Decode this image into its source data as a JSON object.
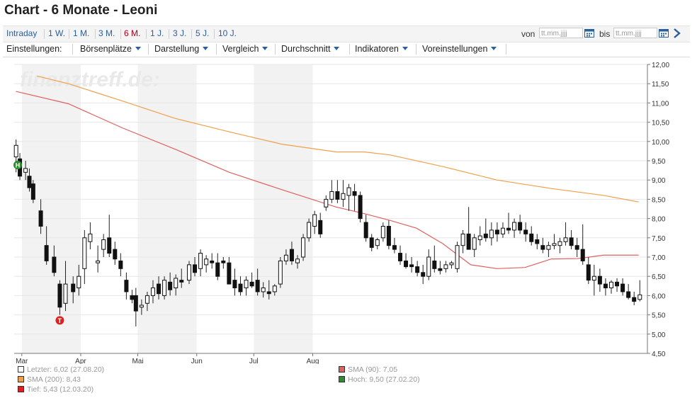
{
  "page": {
    "title": "Chart - 6 Monate - Leoni"
  },
  "range_tabs": [
    {
      "label": "Intraday",
      "active": false
    },
    {
      "label": "1 W.",
      "active": false
    },
    {
      "label": "1 M.",
      "active": false
    },
    {
      "label": "3 M.",
      "active": false
    },
    {
      "label": "6 M.",
      "active": true
    },
    {
      "label": "1 J.",
      "active": false
    },
    {
      "label": "3 J.",
      "active": false
    },
    {
      "label": "5 J.",
      "active": false
    },
    {
      "label": "10 J.",
      "active": false
    }
  ],
  "date_filter": {
    "from_label": "von",
    "from_placeholder": "tt.mm.jjjj",
    "to_label": "bis",
    "to_placeholder": "tt.mm.jjjj"
  },
  "settings": {
    "label": "Einstellungen:",
    "menus": [
      "Börsenplätze",
      "Darstellung",
      "Vergleich",
      "Durchschnitt",
      "Indikatoren",
      "Voreinstellungen"
    ]
  },
  "colors": {
    "sma90": "#e06060",
    "sma200": "#f0a04a",
    "high_marker": "#2e8b2e",
    "low_marker": "#e02020",
    "band": "#f2f2f2",
    "grid": "#e6e6e6",
    "link": "#2a5f9e",
    "active_tab": "#b0001e"
  },
  "chart_data": {
    "type": "candlestick",
    "watermark": "finanztreff.de:",
    "x_axis": {
      "ticks": [
        "Mar",
        "Apr",
        "Mai",
        "Jun",
        "Jul",
        "Aug"
      ]
    },
    "y_axis": {
      "ylim": [
        4.5,
        12.0
      ],
      "ticks": [
        "12,00",
        "11,50",
        "11,00",
        "10,50",
        "10,00",
        "9,50",
        "9,00",
        "8,50",
        "8,00",
        "7,50",
        "7,00",
        "6,50",
        "6,00",
        "5,50",
        "5,00",
        "4,50"
      ],
      "position": "right"
    },
    "sma_200": [
      {
        "day": 13,
        "v": 11.7
      },
      {
        "day": 31,
        "v": 11.5
      },
      {
        "day": 62,
        "v": 11.05
      },
      {
        "day": 92,
        "v": 10.6
      },
      {
        "day": 123,
        "v": 10.25
      },
      {
        "day": 153,
        "v": 9.93
      },
      {
        "day": 184,
        "v": 9.73
      },
      {
        "day": 200,
        "v": 9.73
      },
      {
        "day": 215,
        "v": 9.65
      },
      {
        "day": 245,
        "v": 9.35
      },
      {
        "day": 276,
        "v": 9.0
      },
      {
        "day": 307,
        "v": 8.78
      },
      {
        "day": 337,
        "v": 8.6
      },
      {
        "day": 357,
        "v": 8.43
      }
    ],
    "sma_90": [
      {
        "day": 1,
        "v": 11.3
      },
      {
        "day": 31,
        "v": 10.98
      },
      {
        "day": 62,
        "v": 10.35
      },
      {
        "day": 92,
        "v": 9.8
      },
      {
        "day": 123,
        "v": 9.2
      },
      {
        "day": 153,
        "v": 8.75
      },
      {
        "day": 184,
        "v": 8.3
      },
      {
        "day": 200,
        "v": 8.13
      },
      {
        "day": 215,
        "v": 7.95
      },
      {
        "day": 230,
        "v": 7.75
      },
      {
        "day": 245,
        "v": 7.35
      },
      {
        "day": 261,
        "v": 6.8
      },
      {
        "day": 276,
        "v": 6.7
      },
      {
        "day": 292,
        "v": 6.73
      },
      {
        "day": 307,
        "v": 6.95
      },
      {
        "day": 322,
        "v": 6.96
      },
      {
        "day": 337,
        "v": 7.05
      },
      {
        "day": 357,
        "v": 7.05
      }
    ],
    "candles": [
      {
        "day": 1,
        "o": 9.6,
        "h": 10.05,
        "l": 9.2,
        "c": 9.9
      },
      {
        "day": 3,
        "o": 9.55,
        "h": 9.7,
        "l": 9.0,
        "c": 9.1
      },
      {
        "day": 6,
        "o": 9.2,
        "h": 9.5,
        "l": 9.0,
        "c": 9.3
      },
      {
        "day": 8,
        "o": 9.1,
        "h": 9.3,
        "l": 8.7,
        "c": 8.8
      },
      {
        "day": 10,
        "o": 8.9,
        "h": 9.0,
        "l": 8.4,
        "c": 8.5
      },
      {
        "day": 14,
        "o": 8.2,
        "h": 8.5,
        "l": 7.6,
        "c": 7.8
      },
      {
        "day": 17,
        "o": 7.3,
        "h": 7.8,
        "l": 6.8,
        "c": 6.9
      },
      {
        "day": 21,
        "o": 7.0,
        "h": 7.3,
        "l": 6.5,
        "c": 6.6
      },
      {
        "day": 24,
        "o": 6.3,
        "h": 6.4,
        "l": 5.5,
        "c": 5.7
      },
      {
        "day": 27,
        "o": 5.8,
        "h": 6.9,
        "l": 5.6,
        "c": 6.3
      },
      {
        "day": 31,
        "o": 6.3,
        "h": 6.5,
        "l": 5.8,
        "c": 6.1
      },
      {
        "day": 34,
        "o": 6.2,
        "h": 6.8,
        "l": 6.0,
        "c": 6.5
      },
      {
        "day": 37,
        "o": 6.7,
        "h": 7.7,
        "l": 6.3,
        "c": 7.5
      },
      {
        "day": 40,
        "o": 7.4,
        "h": 7.9,
        "l": 7.2,
        "c": 7.6
      },
      {
        "day": 44,
        "o": 6.85,
        "h": 7.3,
        "l": 6.6,
        "c": 6.9
      },
      {
        "day": 47,
        "o": 7.2,
        "h": 7.6,
        "l": 7.0,
        "c": 7.45
      },
      {
        "day": 50,
        "o": 7.5,
        "h": 8.1,
        "l": 7.0,
        "c": 7.1
      },
      {
        "day": 53,
        "o": 7.2,
        "h": 7.4,
        "l": 6.8,
        "c": 6.95
      },
      {
        "day": 56,
        "o": 6.9,
        "h": 7.1,
        "l": 6.5,
        "c": 6.7
      },
      {
        "day": 59,
        "o": 6.4,
        "h": 6.6,
        "l": 5.9,
        "c": 6.1
      },
      {
        "day": 62,
        "o": 6.0,
        "h": 6.15,
        "l": 5.8,
        "c": 5.9
      },
      {
        "day": 64,
        "o": 6.0,
        "h": 6.2,
        "l": 5.2,
        "c": 5.6
      },
      {
        "day": 67,
        "o": 5.7,
        "h": 5.9,
        "l": 5.5,
        "c": 5.75
      },
      {
        "day": 70,
        "o": 5.8,
        "h": 6.1,
        "l": 5.6,
        "c": 6.0
      },
      {
        "day": 73,
        "o": 6.0,
        "h": 6.4,
        "l": 5.8,
        "c": 6.2
      },
      {
        "day": 76,
        "o": 6.3,
        "h": 6.5,
        "l": 5.9,
        "c": 6.05
      },
      {
        "day": 79,
        "o": 6.0,
        "h": 6.5,
        "l": 5.9,
        "c": 6.4
      },
      {
        "day": 82,
        "o": 6.35,
        "h": 6.6,
        "l": 6.0,
        "c": 6.15
      },
      {
        "day": 85,
        "o": 6.2,
        "h": 6.55,
        "l": 6.0,
        "c": 6.45
      },
      {
        "day": 88,
        "o": 6.4,
        "h": 6.7,
        "l": 6.2,
        "c": 6.35
      },
      {
        "day": 92,
        "o": 6.4,
        "h": 6.9,
        "l": 6.3,
        "c": 6.8
      },
      {
        "day": 95,
        "o": 6.8,
        "h": 7.0,
        "l": 6.5,
        "c": 6.6
      },
      {
        "day": 98,
        "o": 6.7,
        "h": 7.2,
        "l": 6.5,
        "c": 7.1
      },
      {
        "day": 101,
        "o": 6.8,
        "h": 7.05,
        "l": 6.6,
        "c": 6.95
      },
      {
        "day": 104,
        "o": 6.9,
        "h": 7.1,
        "l": 6.7,
        "c": 6.85
      },
      {
        "day": 107,
        "o": 6.85,
        "h": 7.1,
        "l": 6.4,
        "c": 6.5
      },
      {
        "day": 110,
        "o": 6.9,
        "h": 7.0,
        "l": 6.7,
        "c": 6.85
      },
      {
        "day": 113,
        "o": 6.85,
        "h": 7.0,
        "l": 6.3,
        "c": 6.3
      },
      {
        "day": 116,
        "o": 6.4,
        "h": 6.7,
        "l": 6.0,
        "c": 6.2
      },
      {
        "day": 119,
        "o": 6.3,
        "h": 6.5,
        "l": 6.0,
        "c": 6.1
      },
      {
        "day": 122,
        "o": 6.2,
        "h": 6.5,
        "l": 6.0,
        "c": 6.4
      },
      {
        "day": 125,
        "o": 6.35,
        "h": 6.6,
        "l": 6.2,
        "c": 6.25
      },
      {
        "day": 128,
        "o": 6.4,
        "h": 6.7,
        "l": 6.0,
        "c": 6.1
      },
      {
        "day": 131,
        "o": 6.1,
        "h": 6.35,
        "l": 5.95,
        "c": 6.2
      },
      {
        "day": 134,
        "o": 6.1,
        "h": 6.4,
        "l": 5.9,
        "c": 6.05
      },
      {
        "day": 137,
        "o": 6.1,
        "h": 6.3,
        "l": 6.0,
        "c": 6.25
      },
      {
        "day": 140,
        "o": 6.3,
        "h": 7.0,
        "l": 6.2,
        "c": 6.9
      },
      {
        "day": 143,
        "o": 6.9,
        "h": 7.2,
        "l": 6.8,
        "c": 7.05
      },
      {
        "day": 146,
        "o": 7.2,
        "h": 7.4,
        "l": 6.8,
        "c": 6.9
      },
      {
        "day": 149,
        "o": 6.85,
        "h": 7.05,
        "l": 6.7,
        "c": 6.95
      },
      {
        "day": 152,
        "o": 7.0,
        "h": 7.6,
        "l": 6.9,
        "c": 7.5
      },
      {
        "day": 155,
        "o": 7.5,
        "h": 8.0,
        "l": 7.4,
        "c": 7.9
      },
      {
        "day": 158,
        "o": 7.8,
        "h": 8.2,
        "l": 7.6,
        "c": 8.1
      },
      {
        "day": 161,
        "o": 7.95,
        "h": 8.15,
        "l": 7.5,
        "c": 7.6
      },
      {
        "day": 164,
        "o": 8.3,
        "h": 8.6,
        "l": 8.2,
        "c": 8.5
      },
      {
        "day": 167,
        "o": 8.5,
        "h": 9.0,
        "l": 8.4,
        "c": 8.7
      },
      {
        "day": 170,
        "o": 8.7,
        "h": 9.0,
        "l": 8.4,
        "c": 8.5
      },
      {
        "day": 173,
        "o": 8.5,
        "h": 9.0,
        "l": 8.3,
        "c": 8.65
      },
      {
        "day": 176,
        "o": 8.6,
        "h": 8.9,
        "l": 8.2,
        "c": 8.8
      },
      {
        "day": 179,
        "o": 8.7,
        "h": 8.9,
        "l": 8.2,
        "c": 8.6
      },
      {
        "day": 182,
        "o": 8.6,
        "h": 8.7,
        "l": 7.9,
        "c": 8.0
      },
      {
        "day": 185,
        "o": 7.9,
        "h": 8.1,
        "l": 7.4,
        "c": 7.5
      },
      {
        "day": 188,
        "o": 7.5,
        "h": 7.6,
        "l": 7.15,
        "c": 7.25
      },
      {
        "day": 191,
        "o": 7.3,
        "h": 7.5,
        "l": 7.2,
        "c": 7.45
      },
      {
        "day": 194,
        "o": 7.5,
        "h": 7.9,
        "l": 7.4,
        "c": 7.8
      },
      {
        "day": 197,
        "o": 7.8,
        "h": 7.95,
        "l": 7.2,
        "c": 7.3
      },
      {
        "day": 200,
        "o": 7.3,
        "h": 7.5,
        "l": 7.1,
        "c": 7.2
      },
      {
        "day": 203,
        "o": 7.1,
        "h": 7.3,
        "l": 6.8,
        "c": 6.9
      },
      {
        "day": 206,
        "o": 6.9,
        "h": 7.1,
        "l": 6.7,
        "c": 6.75
      },
      {
        "day": 209,
        "o": 6.8,
        "h": 7.0,
        "l": 6.6,
        "c": 6.75
      },
      {
        "day": 212,
        "o": 6.75,
        "h": 6.9,
        "l": 6.5,
        "c": 6.6
      },
      {
        "day": 215,
        "o": 6.6,
        "h": 6.8,
        "l": 6.3,
        "c": 6.5
      },
      {
        "day": 218,
        "o": 6.5,
        "h": 7.2,
        "l": 6.4,
        "c": 7.0
      },
      {
        "day": 221,
        "o": 6.9,
        "h": 7.3,
        "l": 6.6,
        "c": 6.7
      },
      {
        "day": 224,
        "o": 6.7,
        "h": 6.9,
        "l": 6.55,
        "c": 6.65
      },
      {
        "day": 227,
        "o": 6.7,
        "h": 6.9,
        "l": 6.6,
        "c": 6.8
      },
      {
        "day": 230,
        "o": 6.8,
        "h": 6.9,
        "l": 6.7,
        "c": 6.85
      },
      {
        "day": 233,
        "o": 6.7,
        "h": 7.4,
        "l": 6.6,
        "c": 7.3
      },
      {
        "day": 236,
        "o": 7.3,
        "h": 7.7,
        "l": 7.1,
        "c": 7.6
      },
      {
        "day": 239,
        "o": 7.6,
        "h": 8.3,
        "l": 7.2,
        "c": 7.2
      },
      {
        "day": 242,
        "o": 7.2,
        "h": 7.6,
        "l": 7.0,
        "c": 7.5
      },
      {
        "day": 245,
        "o": 7.45,
        "h": 7.8,
        "l": 7.3,
        "c": 7.55
      },
      {
        "day": 248,
        "o": 7.6,
        "h": 8.0,
        "l": 7.4,
        "c": 7.5
      },
      {
        "day": 251,
        "o": 7.5,
        "h": 7.9,
        "l": 7.3,
        "c": 7.7
      },
      {
        "day": 254,
        "o": 7.7,
        "h": 7.9,
        "l": 7.4,
        "c": 7.6
      },
      {
        "day": 257,
        "o": 7.6,
        "h": 7.9,
        "l": 7.5,
        "c": 7.75
      },
      {
        "day": 260,
        "o": 7.75,
        "h": 8.15,
        "l": 7.6,
        "c": 7.7
      },
      {
        "day": 263,
        "o": 7.7,
        "h": 8.0,
        "l": 7.5,
        "c": 7.9
      },
      {
        "day": 266,
        "o": 7.9,
        "h": 8.1,
        "l": 7.6,
        "c": 7.7
      },
      {
        "day": 269,
        "o": 7.7,
        "h": 7.9,
        "l": 7.4,
        "c": 7.6
      },
      {
        "day": 272,
        "o": 7.6,
        "h": 7.8,
        "l": 7.3,
        "c": 7.4
      },
      {
        "day": 275,
        "o": 7.45,
        "h": 7.6,
        "l": 7.2,
        "c": 7.35
      },
      {
        "day": 278,
        "o": 7.3,
        "h": 7.5,
        "l": 7.1,
        "c": 7.2
      },
      {
        "day": 281,
        "o": 7.2,
        "h": 7.4,
        "l": 7.0,
        "c": 7.3
      },
      {
        "day": 284,
        "o": 7.3,
        "h": 7.6,
        "l": 7.2,
        "c": 7.35
      },
      {
        "day": 287,
        "o": 7.3,
        "h": 7.5,
        "l": 7.1,
        "c": 7.4
      },
      {
        "day": 290,
        "o": 7.4,
        "h": 7.9,
        "l": 7.3,
        "c": 7.5
      },
      {
        "day": 293,
        "o": 7.5,
        "h": 7.7,
        "l": 7.2,
        "c": 7.3
      },
      {
        "day": 296,
        "o": 7.3,
        "h": 7.5,
        "l": 7.0,
        "c": 7.2
      },
      {
        "day": 299,
        "o": 7.2,
        "h": 7.85,
        "l": 6.8,
        "c": 6.9
      },
      {
        "day": 302,
        "o": 6.8,
        "h": 7.0,
        "l": 6.3,
        "c": 6.4
      },
      {
        "day": 305,
        "o": 6.4,
        "h": 6.8,
        "l": 6.0,
        "c": 6.5
      },
      {
        "day": 308,
        "o": 6.5,
        "h": 6.7,
        "l": 6.1,
        "c": 6.3
      },
      {
        "day": 311,
        "o": 6.3,
        "h": 6.45,
        "l": 6.0,
        "c": 6.2
      },
      {
        "day": 314,
        "o": 6.2,
        "h": 6.4,
        "l": 6.05,
        "c": 6.35
      },
      {
        "day": 317,
        "o": 6.35,
        "h": 6.45,
        "l": 6.1,
        "c": 6.25
      },
      {
        "day": 320,
        "o": 6.3,
        "h": 6.45,
        "l": 6.0,
        "c": 6.1
      },
      {
        "day": 323,
        "o": 6.1,
        "h": 6.3,
        "l": 5.9,
        "c": 5.95
      },
      {
        "day": 326,
        "o": 5.95,
        "h": 6.1,
        "l": 5.75,
        "c": 5.85
      },
      {
        "day": 329,
        "o": 5.9,
        "h": 6.4,
        "l": 5.85,
        "c": 6.02
      }
    ],
    "markers": [
      {
        "label": "H",
        "day": 0,
        "value": 9.5,
        "kind": "high"
      },
      {
        "label": "T",
        "day": 24,
        "value": 5.43,
        "kind": "low"
      }
    ],
    "legend": [
      {
        "key": "last",
        "text": "Letzter: 6,02 (27.08.20)",
        "swatch": "#ffffff",
        "position": "bottom-left"
      },
      {
        "key": "sma90",
        "text": "SMA (90): 7,05",
        "swatch": "#e06060",
        "position": "bottom-right"
      },
      {
        "key": "sma200",
        "text": "SMA (200): 8,43",
        "swatch": "#f0a04a",
        "position": "bottom-left"
      },
      {
        "key": "high",
        "text": "Hoch: 9,50 (27.02.20)",
        "swatch": "#2e8b2e",
        "position": "bottom-right"
      },
      {
        "key": "low",
        "text": "Tief: 5,43 (12.03.20)",
        "swatch": "#e02020",
        "position": "bottom-left"
      }
    ]
  }
}
